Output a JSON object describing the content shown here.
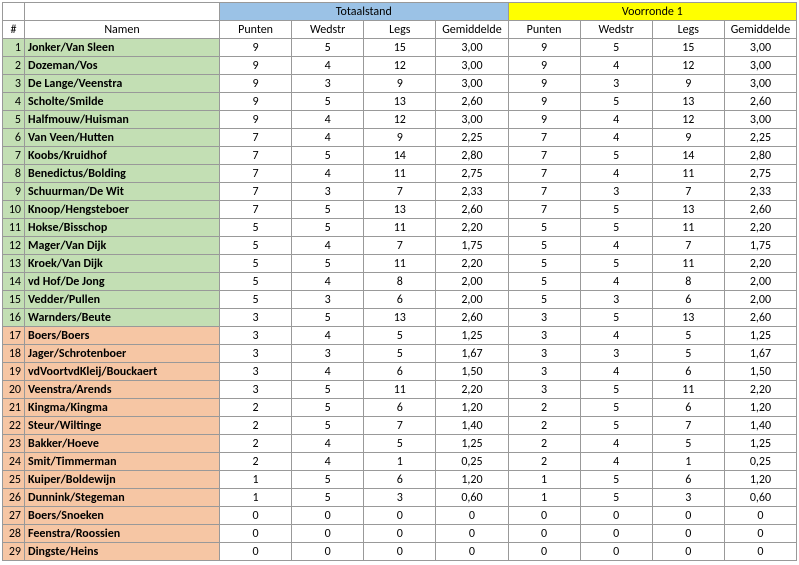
{
  "headers": {
    "section1": "Totaalstand",
    "section2": "Voorronde 1",
    "section1_bg": "#9bc2e6",
    "section2_bg": "#ffff00",
    "idx": "#",
    "name": "Namen",
    "cols": [
      "Punten",
      "Wedstr",
      "Legs",
      "Gemiddelde"
    ]
  },
  "colors": {
    "green": "#c3dfb4",
    "orange": "#f6c6a4"
  },
  "rows": [
    {
      "n": 1,
      "name": "Jonker/Van Sleen",
      "g": "green",
      "t": [
        "9",
        "5",
        "15",
        "3,00"
      ],
      "v": [
        "9",
        "5",
        "15",
        "3,00"
      ]
    },
    {
      "n": 2,
      "name": "Dozeman/Vos",
      "g": "green",
      "t": [
        "9",
        "4",
        "12",
        "3,00"
      ],
      "v": [
        "9",
        "4",
        "12",
        "3,00"
      ]
    },
    {
      "n": 3,
      "name": "De Lange/Veenstra",
      "g": "green",
      "t": [
        "9",
        "3",
        "9",
        "3,00"
      ],
      "v": [
        "9",
        "3",
        "9",
        "3,00"
      ]
    },
    {
      "n": 4,
      "name": "Scholte/Smilde",
      "g": "green",
      "t": [
        "9",
        "5",
        "13",
        "2,60"
      ],
      "v": [
        "9",
        "5",
        "13",
        "2,60"
      ]
    },
    {
      "n": 5,
      "name": "Halfmouw/Huisman",
      "g": "green",
      "t": [
        "9",
        "4",
        "12",
        "3,00"
      ],
      "v": [
        "9",
        "4",
        "12",
        "3,00"
      ]
    },
    {
      "n": 6,
      "name": "Van Veen/Hutten",
      "g": "green",
      "t": [
        "7",
        "4",
        "9",
        "2,25"
      ],
      "v": [
        "7",
        "4",
        "9",
        "2,25"
      ]
    },
    {
      "n": 7,
      "name": "Koobs/Kruidhof",
      "g": "green",
      "t": [
        "7",
        "5",
        "14",
        "2,80"
      ],
      "v": [
        "7",
        "5",
        "14",
        "2,80"
      ]
    },
    {
      "n": 8,
      "name": "Benedictus/Bolding",
      "g": "green",
      "t": [
        "7",
        "4",
        "11",
        "2,75"
      ],
      "v": [
        "7",
        "4",
        "11",
        "2,75"
      ]
    },
    {
      "n": 9,
      "name": "Schuurman/De Wit",
      "g": "green",
      "t": [
        "7",
        "3",
        "7",
        "2,33"
      ],
      "v": [
        "7",
        "3",
        "7",
        "2,33"
      ]
    },
    {
      "n": 10,
      "name": "Knoop/Hengsteboer",
      "g": "green",
      "t": [
        "7",
        "5",
        "13",
        "2,60"
      ],
      "v": [
        "7",
        "5",
        "13",
        "2,60"
      ]
    },
    {
      "n": 11,
      "name": "Hokse/Bisschop",
      "g": "green",
      "t": [
        "5",
        "5",
        "11",
        "2,20"
      ],
      "v": [
        "5",
        "5",
        "11",
        "2,20"
      ]
    },
    {
      "n": 12,
      "name": "Mager/Van Dijk",
      "g": "green",
      "t": [
        "5",
        "4",
        "7",
        "1,75"
      ],
      "v": [
        "5",
        "4",
        "7",
        "1,75"
      ]
    },
    {
      "n": 13,
      "name": "Kroek/Van Dijk",
      "g": "green",
      "t": [
        "5",
        "5",
        "11",
        "2,20"
      ],
      "v": [
        "5",
        "5",
        "11",
        "2,20"
      ]
    },
    {
      "n": 14,
      "name": "vd Hof/De Jong",
      "g": "green",
      "t": [
        "5",
        "4",
        "8",
        "2,00"
      ],
      "v": [
        "5",
        "4",
        "8",
        "2,00"
      ]
    },
    {
      "n": 15,
      "name": "Vedder/Pullen",
      "g": "green",
      "t": [
        "5",
        "3",
        "6",
        "2,00"
      ],
      "v": [
        "5",
        "3",
        "6",
        "2,00"
      ]
    },
    {
      "n": 16,
      "name": "Warnders/Beute",
      "g": "green",
      "t": [
        "3",
        "5",
        "13",
        "2,60"
      ],
      "v": [
        "3",
        "5",
        "13",
        "2,60"
      ]
    },
    {
      "n": 17,
      "name": "Boers/Boers",
      "g": "orange",
      "t": [
        "3",
        "4",
        "5",
        "1,25"
      ],
      "v": [
        "3",
        "4",
        "5",
        "1,25"
      ]
    },
    {
      "n": 18,
      "name": "Jager/Schrotenboer",
      "g": "orange",
      "t": [
        "3",
        "3",
        "5",
        "1,67"
      ],
      "v": [
        "3",
        "3",
        "5",
        "1,67"
      ]
    },
    {
      "n": 19,
      "name": "vdVoortvdKleij/Bouckaert",
      "g": "orange",
      "t": [
        "3",
        "4",
        "6",
        "1,50"
      ],
      "v": [
        "3",
        "4",
        "6",
        "1,50"
      ]
    },
    {
      "n": 20,
      "name": "Veenstra/Arends",
      "g": "orange",
      "t": [
        "3",
        "5",
        "11",
        "2,20"
      ],
      "v": [
        "3",
        "5",
        "11",
        "2,20"
      ]
    },
    {
      "n": 21,
      "name": "Kingma/Kingma",
      "g": "orange",
      "t": [
        "2",
        "5",
        "6",
        "1,20"
      ],
      "v": [
        "2",
        "5",
        "6",
        "1,20"
      ]
    },
    {
      "n": 22,
      "name": "Steur/Wiltinge",
      "g": "orange",
      "t": [
        "2",
        "5",
        "7",
        "1,40"
      ],
      "v": [
        "2",
        "5",
        "7",
        "1,40"
      ]
    },
    {
      "n": 23,
      "name": "Bakker/Hoeve",
      "g": "orange",
      "t": [
        "2",
        "4",
        "5",
        "1,25"
      ],
      "v": [
        "2",
        "4",
        "5",
        "1,25"
      ]
    },
    {
      "n": 24,
      "name": "Smit/Timmerman",
      "g": "orange",
      "t": [
        "2",
        "4",
        "1",
        "0,25"
      ],
      "v": [
        "2",
        "4",
        "1",
        "0,25"
      ]
    },
    {
      "n": 25,
      "name": "Kuiper/Boldewijn",
      "g": "orange",
      "t": [
        "1",
        "5",
        "6",
        "1,20"
      ],
      "v": [
        "1",
        "5",
        "6",
        "1,20"
      ]
    },
    {
      "n": 26,
      "name": "Dunnink/Stegeman",
      "g": "orange",
      "t": [
        "1",
        "5",
        "3",
        "0,60"
      ],
      "v": [
        "1",
        "5",
        "3",
        "0,60"
      ]
    },
    {
      "n": 27,
      "name": "Boers/Snoeken",
      "g": "orange",
      "t": [
        "0",
        "0",
        "0",
        "0"
      ],
      "v": [
        "0",
        "0",
        "0",
        "0"
      ]
    },
    {
      "n": 28,
      "name": "Feenstra/Roossien",
      "g": "orange",
      "t": [
        "0",
        "0",
        "0",
        "0"
      ],
      "v": [
        "0",
        "0",
        "0",
        "0"
      ]
    },
    {
      "n": 29,
      "name": "Dingste/Heins",
      "g": "orange",
      "t": [
        "0",
        "0",
        "0",
        "0"
      ],
      "v": [
        "0",
        "0",
        "0",
        "0"
      ]
    }
  ]
}
